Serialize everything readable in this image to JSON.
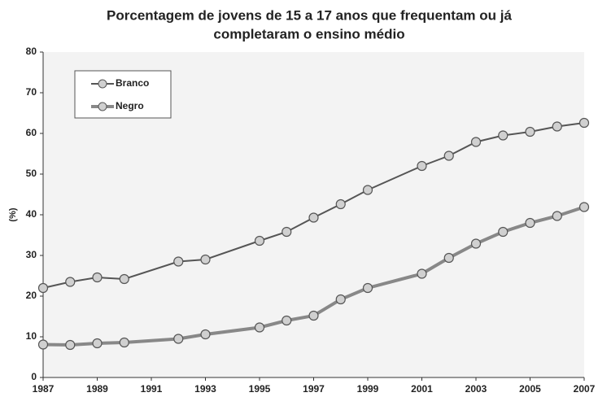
{
  "chart_data": {
    "type": "line",
    "title": [
      "Porcentagem de jovens de 15 a 17 anos que frequentam ou já",
      "completaram o ensino médio"
    ],
    "ylabel": "(%)",
    "x": [
      1987,
      1988,
      1989,
      1990,
      1992,
      1993,
      1995,
      1996,
      1997,
      1998,
      1999,
      2001,
      2002,
      2003,
      2004,
      2005,
      2006,
      2007
    ],
    "series": [
      {
        "name": "Branco",
        "color": "#555555",
        "values": [
          22,
          23.5,
          24.6,
          24.2,
          28.5,
          29,
          33.6,
          35.8,
          39.3,
          42.6,
          46.1,
          52,
          54.5,
          57.9,
          59.5,
          60.4,
          61.7,
          62.6
        ]
      },
      {
        "name": "Negro",
        "color": "#888888",
        "values": [
          8.1,
          8,
          8.4,
          8.6,
          9.5,
          10.6,
          12.3,
          14,
          15.2,
          19.2,
          22,
          25.5,
          29.4,
          32.9,
          35.8,
          38,
          39.7,
          41.9
        ]
      }
    ],
    "xlim": [
      1987,
      2007
    ],
    "xticks": [
      1987,
      1989,
      1991,
      1993,
      1995,
      1997,
      1999,
      2001,
      2003,
      2005,
      2007
    ],
    "ylim": [
      0,
      80
    ],
    "yticks": [
      0,
      10,
      20,
      30,
      40,
      50,
      60,
      70,
      80
    ],
    "legend": "upper left"
  }
}
